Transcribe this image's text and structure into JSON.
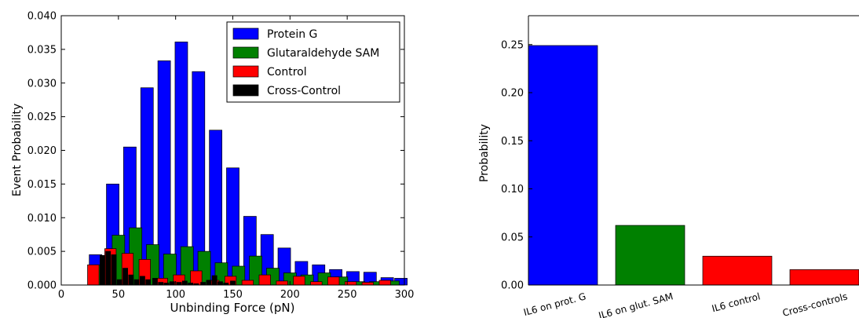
{
  "chart_data": [
    {
      "type": "bar",
      "title": "",
      "xlabel": "Unbinding Force (pN)",
      "ylabel": "Event Probability",
      "xlim": [
        0,
        300
      ],
      "ylim": [
        0,
        0.04
      ],
      "xticks": [
        "0",
        "50",
        "100",
        "150",
        "200",
        "250",
        "300"
      ],
      "yticks": [
        "0.000",
        "0.005",
        "0.010",
        "0.015",
        "0.020",
        "0.025",
        "0.030",
        "0.035",
        "0.040"
      ],
      "legend_position": "top-right",
      "series": [
        {
          "name": "Protein G",
          "color": "#0000ff",
          "x": [
            30,
            45,
            60,
            75,
            90,
            105,
            120,
            135,
            150,
            165,
            180,
            195,
            210,
            225,
            240,
            255,
            270,
            285,
            297
          ],
          "values": [
            0.0045,
            0.015,
            0.0205,
            0.0293,
            0.0333,
            0.0361,
            0.0317,
            0.023,
            0.0174,
            0.0102,
            0.0075,
            0.0055,
            0.0035,
            0.003,
            0.0023,
            0.002,
            0.0019,
            0.0011,
            0.001
          ]
        },
        {
          "name": "Glutaraldehyde SAM",
          "color": "#008000",
          "x": [
            35,
            50,
            65,
            80,
            95,
            110,
            125,
            140,
            155,
            170,
            185,
            200,
            215,
            230,
            245,
            260,
            275,
            290
          ],
          "values": [
            0.003,
            0.0074,
            0.0085,
            0.006,
            0.0046,
            0.0057,
            0.005,
            0.0033,
            0.0028,
            0.0043,
            0.0025,
            0.0018,
            0.0015,
            0.0018,
            0.0012,
            0.0005,
            0.0005,
            0.0006
          ]
        },
        {
          "name": "Control",
          "color": "#ff0000",
          "x": [
            28,
            43,
            58,
            73,
            88,
            103,
            118,
            133,
            148,
            163,
            178,
            193,
            208,
            223,
            238,
            253,
            268,
            283
          ],
          "values": [
            0.003,
            0.0054,
            0.0047,
            0.0038,
            0.001,
            0.0015,
            0.0021,
            0.0007,
            0.0013,
            0.0007,
            0.0015,
            0.0006,
            0.0013,
            0.0005,
            0.0012,
            0.0005,
            0.0004,
            0.0007
          ]
        },
        {
          "name": "Cross-Control",
          "color": "#000000",
          "x": [
            36,
            41,
            46,
            51,
            56,
            61,
            66,
            71,
            76,
            82,
            87,
            92,
            97,
            103,
            108,
            113,
            118,
            124,
            129,
            134,
            139,
            144,
            150
          ],
          "values": [
            0.0044,
            0.005,
            0.0045,
            0.0008,
            0.0025,
            0.0015,
            0.0008,
            0.0013,
            0.0008,
            0.001,
            0.0004,
            0.0003,
            0.0005,
            0.0004,
            0.0006,
            0.0003,
            0.0002,
            0.0004,
            0.0007,
            0.0014,
            0.0005,
            0.0003,
            0.0006
          ]
        }
      ]
    },
    {
      "type": "bar",
      "title": "",
      "xlabel": "",
      "ylabel": "Probability",
      "ylim": [
        0,
        0.28
      ],
      "yticks": [
        "0.00",
        "0.05",
        "0.10",
        "0.15",
        "0.20",
        "0.25"
      ],
      "categories": [
        "IL6 on prot. G",
        "IL6 on glut. SAM",
        "IL6 control",
        "Cross-controls"
      ],
      "values": [
        0.249,
        0.062,
        0.03,
        0.016
      ],
      "colors": [
        "#0000ff",
        "#008000",
        "#ff0000",
        "#ff0000"
      ]
    }
  ]
}
